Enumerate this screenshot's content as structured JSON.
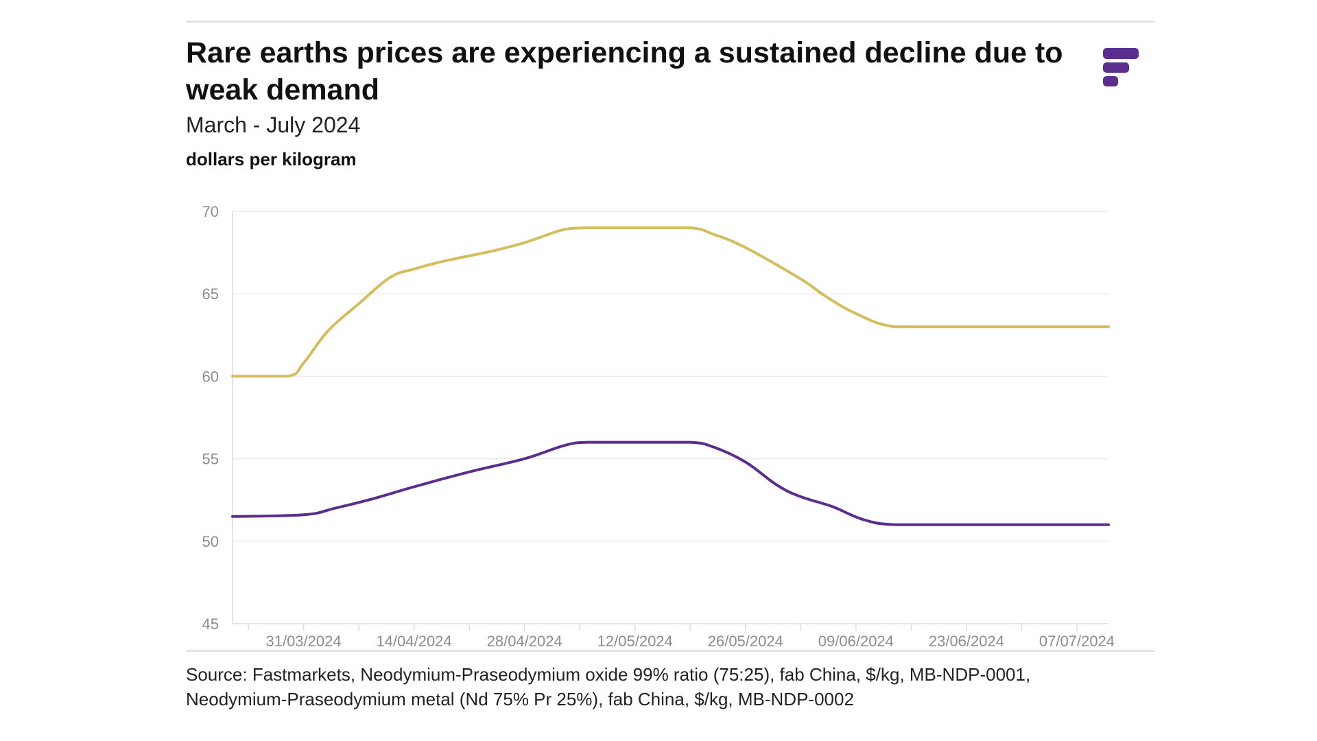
{
  "header": {
    "title": "Rare earths prices are experiencing a sustained decline due to weak demand",
    "subtitle": "March - July 2024",
    "unit_label": "dollars per kilogram"
  },
  "logo": {
    "icon": "fastmarkets-logo-icon",
    "color": "#5b2d8e"
  },
  "footer": {
    "source_line1": "Source: Fastmarkets, Neodymium-Praseodymium oxide 99% ratio (75:25), fab China, $/kg, MB-NDP-0001,",
    "source_line2": "Neodymium-Praseodymium metal (Nd 75% Pr 25%), fab China, $/kg, MB-NDP-0002"
  },
  "chart_data": {
    "type": "line",
    "title": "Rare earths prices are experiencing a sustained decline due to weak demand",
    "subtitle": "March - July 2024",
    "xlabel": "",
    "ylabel": "dollars per kilogram",
    "ylim": [
      45,
      70
    ],
    "yticks": [
      70,
      65,
      60,
      55,
      50,
      45
    ],
    "xlim": [
      "2024-03-22",
      "2024-07-11"
    ],
    "xticks": [
      "31/03/2024",
      "14/04/2024",
      "28/04/2024",
      "12/05/2024",
      "26/05/2024",
      "09/06/2024",
      "23/06/2024",
      "07/07/2024"
    ],
    "grid": true,
    "legend": "none",
    "series": [
      {
        "color": "#d2bd5f",
        "points": [
          [
            "2024-03-22",
            60.0
          ],
          [
            "2024-03-29",
            60.0
          ],
          [
            "2024-03-31",
            60.8
          ],
          [
            "2024-04-03",
            62.7
          ],
          [
            "2024-04-07",
            64.4
          ],
          [
            "2024-04-11",
            66.0
          ],
          [
            "2024-04-14",
            66.5
          ],
          [
            "2024-04-18",
            67.0
          ],
          [
            "2024-04-24",
            67.6
          ],
          [
            "2024-04-28",
            68.1
          ],
          [
            "2024-05-03",
            68.9
          ],
          [
            "2024-05-06",
            69.0
          ],
          [
            "2024-05-12",
            69.0
          ],
          [
            "2024-05-19",
            69.0
          ],
          [
            "2024-05-22",
            68.6
          ],
          [
            "2024-05-26",
            67.8
          ],
          [
            "2024-06-02",
            65.9
          ],
          [
            "2024-06-05",
            64.9
          ],
          [
            "2024-06-09",
            63.8
          ],
          [
            "2024-06-14",
            63.0
          ],
          [
            "2024-06-23",
            63.0
          ],
          [
            "2024-07-07",
            63.0
          ],
          [
            "2024-07-11",
            63.0
          ]
        ]
      },
      {
        "color": "#5b2d8e",
        "points": [
          [
            "2024-03-22",
            51.5
          ],
          [
            "2024-03-31",
            51.6
          ],
          [
            "2024-04-04",
            52.0
          ],
          [
            "2024-04-09",
            52.6
          ],
          [
            "2024-04-14",
            53.3
          ],
          [
            "2024-04-21",
            54.2
          ],
          [
            "2024-04-28",
            55.0
          ],
          [
            "2024-05-03",
            55.8
          ],
          [
            "2024-05-06",
            56.0
          ],
          [
            "2024-05-12",
            56.0
          ],
          [
            "2024-05-19",
            56.0
          ],
          [
            "2024-05-22",
            55.7
          ],
          [
            "2024-05-26",
            54.8
          ],
          [
            "2024-05-30",
            53.4
          ],
          [
            "2024-06-02",
            52.7
          ],
          [
            "2024-06-06",
            52.1
          ],
          [
            "2024-06-10",
            51.3
          ],
          [
            "2024-06-14",
            51.0
          ],
          [
            "2024-06-23",
            51.0
          ],
          [
            "2024-07-07",
            51.0
          ],
          [
            "2024-07-11",
            51.0
          ]
        ]
      }
    ]
  }
}
